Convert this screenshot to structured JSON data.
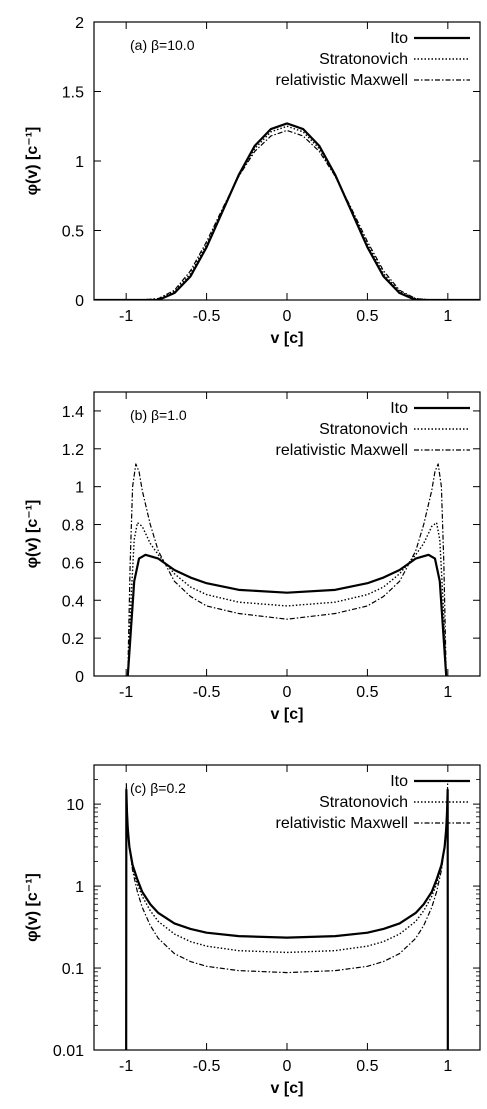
{
  "chart_data": [
    {
      "type": "line",
      "panel_label": "(a)  β=10.0",
      "xlabel": "v [c]",
      "ylabel": "φ(v) [c⁻¹]",
      "xlim": [
        -1.2,
        1.2
      ],
      "ylim": [
        0,
        2
      ],
      "xscale": "linear",
      "yscale": "linear",
      "xticks": [
        -1,
        -0.5,
        0,
        0.5,
        1
      ],
      "xtick_labels": [
        "-1",
        "-0.5",
        "0",
        "0.5",
        "1"
      ],
      "yticks": [
        0,
        0.5,
        1,
        1.5,
        2
      ],
      "ytick_labels": [
        "0",
        "0.5",
        "1",
        "1.5",
        "2"
      ],
      "legend_position": "top-right",
      "grid": false,
      "series": [
        {
          "name": "Ito",
          "style": "solid",
          "x": [
            -1.2,
            -0.9,
            -0.8,
            -0.7,
            -0.6,
            -0.5,
            -0.4,
            -0.3,
            -0.2,
            -0.1,
            0,
            0.1,
            0.2,
            0.3,
            0.4,
            0.5,
            0.6,
            0.7,
            0.8,
            0.9,
            1.2
          ],
          "y": [
            0,
            0,
            0.0,
            0.05,
            0.17,
            0.38,
            0.64,
            0.9,
            1.11,
            1.23,
            1.27,
            1.23,
            1.11,
            0.9,
            0.64,
            0.38,
            0.17,
            0.05,
            0.0,
            0,
            0
          ]
        },
        {
          "name": "Stratonovich",
          "style": "dotted",
          "x": [
            -1.2,
            -0.9,
            -0.8,
            -0.7,
            -0.6,
            -0.5,
            -0.4,
            -0.3,
            -0.2,
            -0.1,
            0,
            0.1,
            0.2,
            0.3,
            0.4,
            0.5,
            0.6,
            0.7,
            0.8,
            0.9,
            1.2
          ],
          "y": [
            0,
            0,
            0.01,
            0.06,
            0.19,
            0.4,
            0.65,
            0.89,
            1.09,
            1.21,
            1.25,
            1.21,
            1.09,
            0.89,
            0.65,
            0.4,
            0.19,
            0.06,
            0.01,
            0,
            0
          ]
        },
        {
          "name": "relativistic Maxwell",
          "style": "dashdot",
          "x": [
            -1.2,
            -0.9,
            -0.8,
            -0.7,
            -0.6,
            -0.5,
            -0.4,
            -0.3,
            -0.2,
            -0.1,
            0,
            0.1,
            0.2,
            0.3,
            0.4,
            0.5,
            0.6,
            0.7,
            0.8,
            0.9,
            1.2
          ],
          "y": [
            0,
            0,
            0.01,
            0.07,
            0.21,
            0.42,
            0.66,
            0.89,
            1.07,
            1.18,
            1.22,
            1.18,
            1.07,
            0.89,
            0.66,
            0.42,
            0.21,
            0.07,
            0.01,
            0,
            0
          ]
        }
      ]
    },
    {
      "type": "line",
      "panel_label": "(b)  β=1.0",
      "xlabel": "v [c]",
      "ylabel": "φ(v) [c⁻¹]",
      "xlim": [
        -1.2,
        1.2
      ],
      "ylim": [
        0,
        1.5
      ],
      "xscale": "linear",
      "yscale": "linear",
      "xticks": [
        -1,
        -0.5,
        0,
        0.5,
        1
      ],
      "xtick_labels": [
        "-1",
        "-0.5",
        "0",
        "0.5",
        "1"
      ],
      "yticks": [
        0,
        0.2,
        0.4,
        0.6,
        0.8,
        1,
        1.2,
        1.4
      ],
      "ytick_labels": [
        "0",
        "0.2",
        "0.4",
        "0.6",
        "0.8",
        "1",
        "1.2",
        "1.4"
      ],
      "legend_position": "top-right",
      "grid": false,
      "series": [
        {
          "name": "Ito",
          "style": "solid",
          "x": [
            -0.99,
            -0.97,
            -0.95,
            -0.92,
            -0.88,
            -0.8,
            -0.7,
            -0.6,
            -0.5,
            -0.3,
            0,
            0.3,
            0.5,
            0.6,
            0.7,
            0.8,
            0.88,
            0.92,
            0.95,
            0.97,
            0.99
          ],
          "y": [
            0.0,
            0.25,
            0.5,
            0.62,
            0.64,
            0.62,
            0.56,
            0.52,
            0.49,
            0.455,
            0.44,
            0.455,
            0.49,
            0.52,
            0.56,
            0.62,
            0.64,
            0.62,
            0.5,
            0.25,
            0.0
          ]
        },
        {
          "name": "Stratonovich",
          "style": "dotted",
          "x": [
            -0.99,
            -0.97,
            -0.95,
            -0.93,
            -0.9,
            -0.85,
            -0.8,
            -0.7,
            -0.6,
            -0.5,
            -0.3,
            0,
            0.3,
            0.5,
            0.6,
            0.7,
            0.8,
            0.85,
            0.9,
            0.93,
            0.95,
            0.97,
            0.99
          ],
          "y": [
            0.0,
            0.4,
            0.72,
            0.81,
            0.79,
            0.7,
            0.64,
            0.54,
            0.47,
            0.43,
            0.39,
            0.37,
            0.39,
            0.43,
            0.47,
            0.54,
            0.64,
            0.7,
            0.79,
            0.81,
            0.72,
            0.4,
            0.0
          ]
        },
        {
          "name": "relativistic Maxwell",
          "style": "dashdot",
          "x": [
            -0.99,
            -0.975,
            -0.96,
            -0.94,
            -0.92,
            -0.9,
            -0.85,
            -0.8,
            -0.7,
            -0.6,
            -0.5,
            -0.3,
            0,
            0.3,
            0.5,
            0.6,
            0.7,
            0.8,
            0.85,
            0.9,
            0.92,
            0.94,
            0.96,
            0.975,
            0.99
          ],
          "y": [
            0.0,
            0.6,
            1.0,
            1.12,
            1.08,
            0.98,
            0.8,
            0.66,
            0.5,
            0.42,
            0.37,
            0.33,
            0.3,
            0.33,
            0.37,
            0.42,
            0.5,
            0.66,
            0.8,
            0.98,
            1.08,
            1.12,
            1.0,
            0.6,
            0.0
          ]
        }
      ]
    },
    {
      "type": "line",
      "panel_label": "(c)  β=0.2",
      "xlabel": "v [c]",
      "ylabel": "φ(v) [c⁻¹]",
      "xlim": [
        -1.2,
        1.2
      ],
      "ylim": [
        0.01,
        30
      ],
      "xscale": "linear",
      "yscale": "log",
      "xticks": [
        -1,
        -0.5,
        0,
        0.5,
        1
      ],
      "xtick_labels": [
        "-1",
        "-0.5",
        "0",
        "0.5",
        "1"
      ],
      "yticks": [
        0.01,
        0.1,
        1,
        10
      ],
      "ytick_labels": [
        "0.01",
        "0.1",
        "1",
        "10"
      ],
      "legend_position": "top-right",
      "grid": false,
      "series": [
        {
          "name": "Ito",
          "style": "solid",
          "x": [
            -1.0,
            -0.999,
            -0.995,
            -0.99,
            -0.98,
            -0.96,
            -0.93,
            -0.9,
            -0.85,
            -0.8,
            -0.7,
            -0.6,
            -0.5,
            -0.3,
            0,
            0.3,
            0.5,
            0.6,
            0.7,
            0.8,
            0.85,
            0.9,
            0.93,
            0.96,
            0.98,
            0.99,
            0.995,
            0.999,
            1.0
          ],
          "y": [
            0.01,
            15,
            8,
            5,
            3,
            1.8,
            1.2,
            0.85,
            0.6,
            0.47,
            0.35,
            0.3,
            0.27,
            0.245,
            0.235,
            0.245,
            0.27,
            0.3,
            0.35,
            0.47,
            0.6,
            0.85,
            1.2,
            1.8,
            3,
            5,
            8,
            15,
            0.01
          ]
        },
        {
          "name": "Stratonovich",
          "style": "dotted",
          "x": [
            -0.999,
            -0.995,
            -0.99,
            -0.98,
            -0.96,
            -0.93,
            -0.9,
            -0.85,
            -0.8,
            -0.7,
            -0.6,
            -0.5,
            -0.3,
            0,
            0.3,
            0.5,
            0.6,
            0.7,
            0.8,
            0.85,
            0.9,
            0.93,
            0.96,
            0.98,
            0.99,
            0.995,
            0.999
          ],
          "y": [
            16,
            8.5,
            5.2,
            3,
            1.7,
            1.05,
            0.75,
            0.5,
            0.37,
            0.26,
            0.21,
            0.185,
            0.163,
            0.155,
            0.163,
            0.185,
            0.21,
            0.26,
            0.37,
            0.5,
            0.75,
            1.05,
            1.7,
            3,
            5.2,
            8.5,
            16
          ]
        },
        {
          "name": "relativistic Maxwell",
          "style": "dashdot",
          "x": [
            -0.999,
            -0.995,
            -0.99,
            -0.98,
            -0.96,
            -0.93,
            -0.9,
            -0.85,
            -0.8,
            -0.7,
            -0.6,
            -0.5,
            -0.3,
            0,
            0.3,
            0.5,
            0.6,
            0.7,
            0.8,
            0.85,
            0.9,
            0.93,
            0.96,
            0.98,
            0.99,
            0.995,
            0.999
          ],
          "y": [
            18,
            9,
            5.5,
            3,
            1.55,
            0.85,
            0.55,
            0.33,
            0.23,
            0.15,
            0.12,
            0.105,
            0.093,
            0.088,
            0.093,
            0.105,
            0.12,
            0.15,
            0.23,
            0.33,
            0.55,
            0.85,
            1.55,
            3,
            5.5,
            9,
            18
          ]
        }
      ]
    }
  ]
}
